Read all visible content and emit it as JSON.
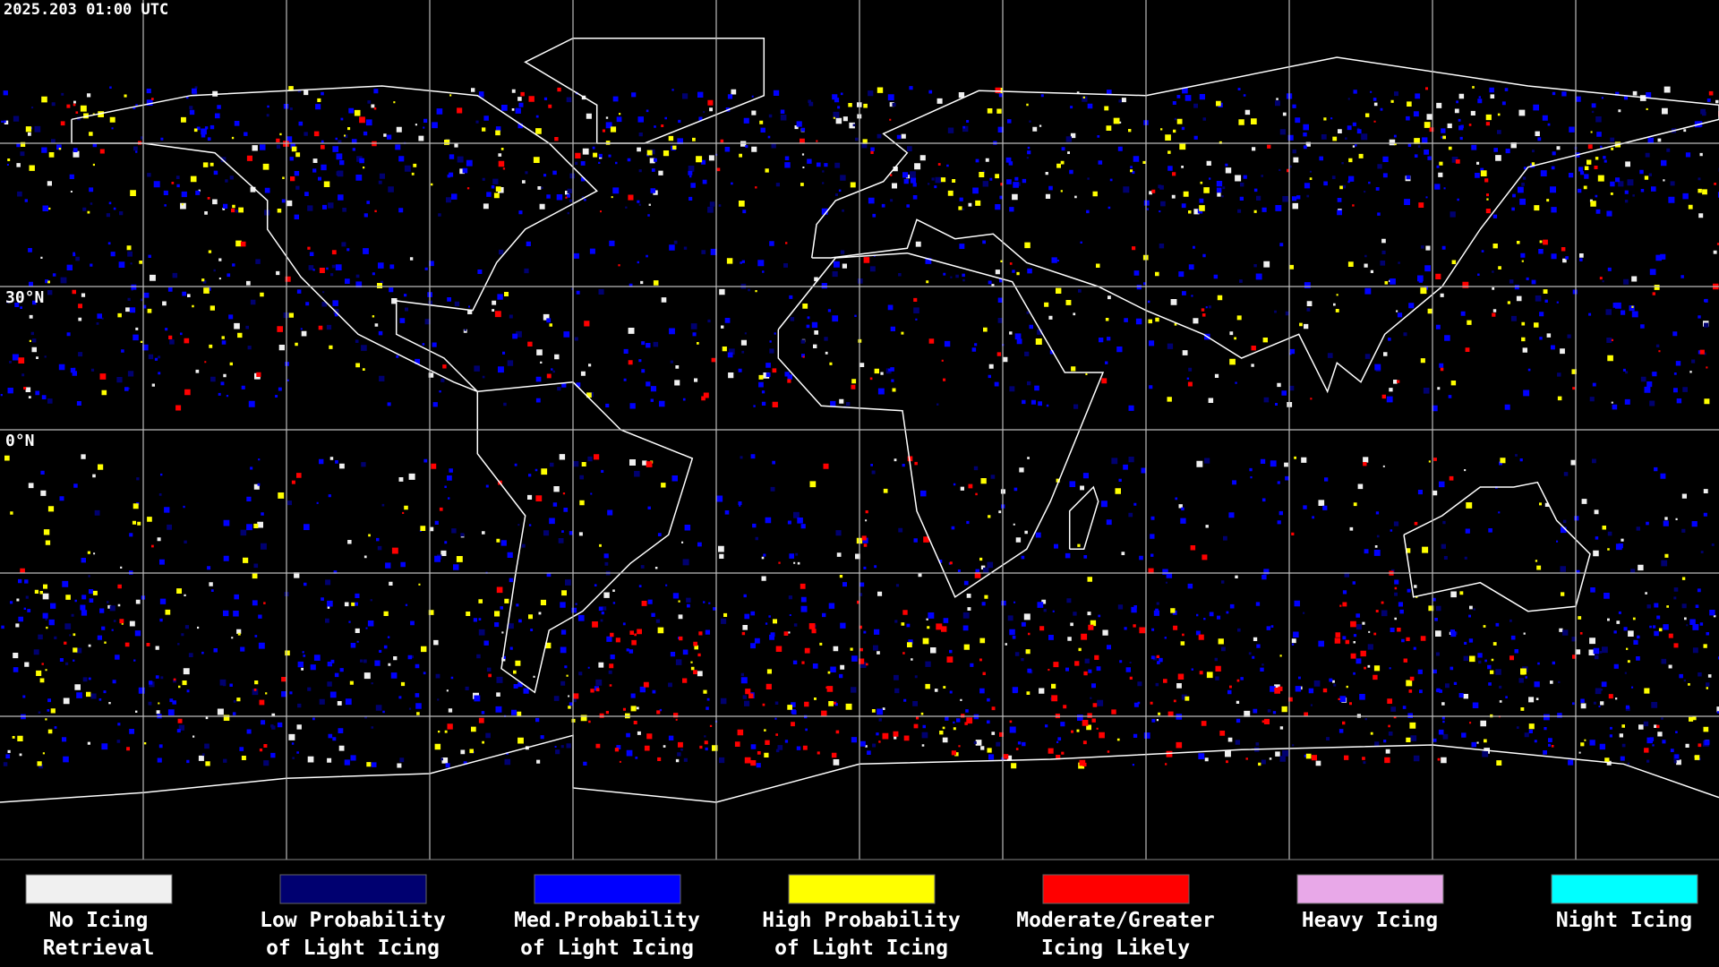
{
  "header": {
    "timestamp": "2025.203 01:00 UTC"
  },
  "map": {
    "lat_labels": [
      "30°N",
      "0°N"
    ]
  },
  "legend": [
    {
      "color": "#f0f0f0",
      "label": [
        "No Icing",
        "Retrieval"
      ]
    },
    {
      "color": "#000070",
      "label": [
        "Low Probability",
        "of Light Icing"
      ]
    },
    {
      "color": "#0000ff",
      "label": [
        "Med.Probability",
        "of Light Icing"
      ]
    },
    {
      "color": "#ffff00",
      "label": [
        "High Probability",
        "of Light Icing"
      ]
    },
    {
      "color": "#ff0000",
      "label": [
        "Moderate/Greater",
        "Icing Likely"
      ]
    },
    {
      "color": "#e8a8e8",
      "label": [
        "Heavy Icing"
      ]
    },
    {
      "color": "#00ffff",
      "label": [
        "Night Icing"
      ]
    }
  ]
}
